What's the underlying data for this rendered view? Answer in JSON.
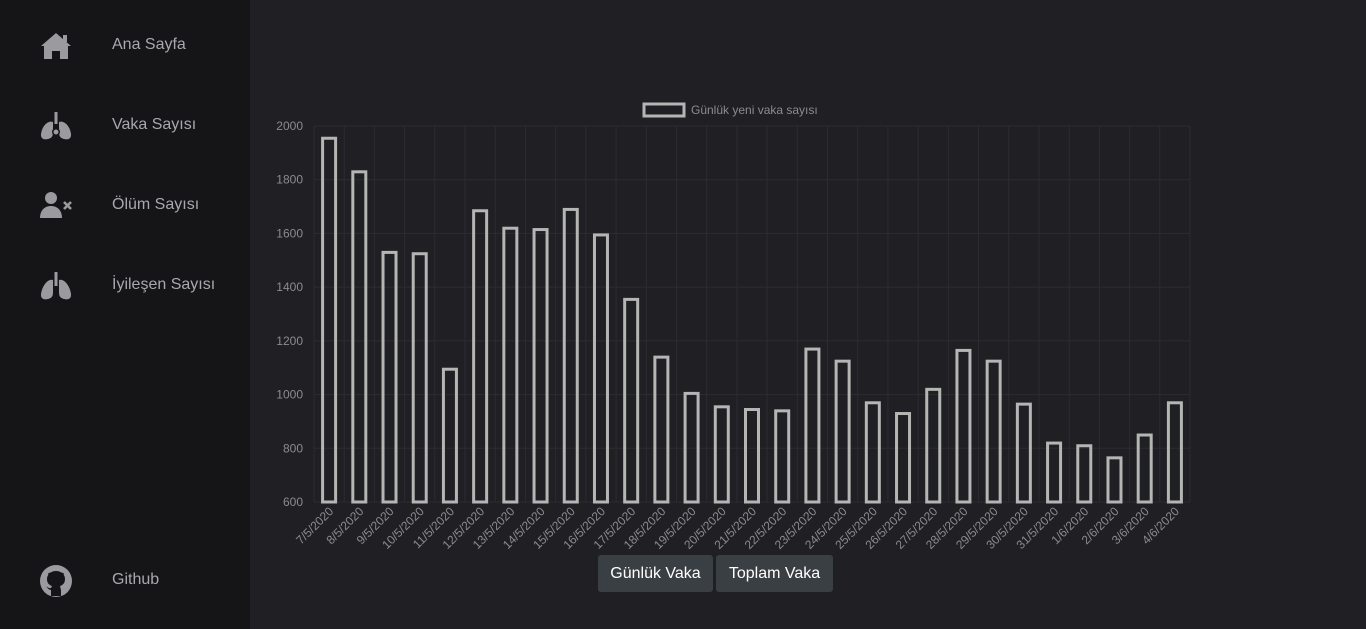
{
  "sidebar": {
    "items": [
      {
        "label": "Ana Sayfa",
        "icon": "home-icon"
      },
      {
        "label": "Vaka Sayısı",
        "icon": "virus-lungs-icon"
      },
      {
        "label": "Ölüm Sayısı",
        "icon": "user-times-icon"
      },
      {
        "label": "İyileşen Sayısı",
        "icon": "lungs-icon"
      }
    ],
    "footer": {
      "label": "Github",
      "icon": "github-icon"
    }
  },
  "buttons": {
    "daily_label": "Günlük Vaka",
    "total_label": "Toplam Vaka"
  },
  "colors": {
    "bar_stroke": "#b4b6b4",
    "grid": "#2c2c31",
    "tick_text": "#8b8b90"
  },
  "chart_data": {
    "type": "bar",
    "legend": "Günlük yeni vaka sayısı",
    "legend_position": "top-center",
    "grid": true,
    "ylim": [
      600,
      2000
    ],
    "yticks": [
      600,
      800,
      1000,
      1200,
      1400,
      1600,
      1800,
      2000
    ],
    "categories": [
      "7/5/2020",
      "8/5/2020",
      "9/5/2020",
      "10/5/2020",
      "11/5/2020",
      "12/5/2020",
      "13/5/2020",
      "14/5/2020",
      "15/5/2020",
      "16/5/2020",
      "17/5/2020",
      "18/5/2020",
      "19/5/2020",
      "20/5/2020",
      "21/5/2020",
      "22/5/2020",
      "23/5/2020",
      "24/5/2020",
      "25/5/2020",
      "26/5/2020",
      "27/5/2020",
      "28/5/2020",
      "29/5/2020",
      "30/5/2020",
      "31/5/2020",
      "1/6/2020",
      "2/6/2020",
      "3/6/2020",
      "4/6/2020"
    ],
    "series": [
      {
        "name": "Günlük yeni vaka sayısı",
        "values": [
          1960,
          1835,
          1535,
          1530,
          1100,
          1690,
          1625,
          1620,
          1695,
          1600,
          1360,
          1145,
          1010,
          960,
          950,
          945,
          1175,
          1130,
          975,
          935,
          1025,
          1170,
          1130,
          970,
          825,
          815,
          770,
          855,
          975
        ]
      }
    ]
  }
}
